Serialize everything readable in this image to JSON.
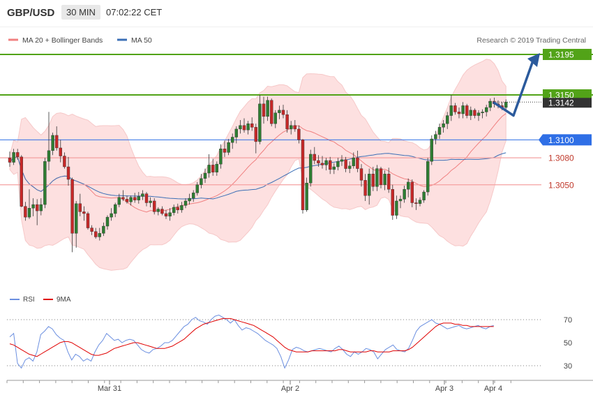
{
  "header": {
    "pair": "GBP/USD",
    "timeframe": "30 MIN",
    "time": "07:02:22 CET"
  },
  "legend": {
    "ma20": "MA 20 + Bollinger Bands",
    "ma50": "MA 50",
    "copyright": "Research © 2019 Trading Central"
  },
  "rsi_legend": {
    "rsi": "RSI",
    "ma": "9MA"
  },
  "colors": {
    "candle_up": "#2e7d32",
    "candle_down": "#c62828",
    "bollinger_fill": "#fde0e0",
    "ma20": "#f08080",
    "ma50": "#3b6fb6",
    "resistance": "#52a318",
    "support": "#f4a0a0",
    "pivot_line": "#2f6fe6",
    "forecast_arrow": "#2b5a9c",
    "rsi": "#6b8fe0",
    "rsi_ma": "#e00000",
    "price_tag": "#333333"
  },
  "chart_data": [
    {
      "type": "candlestick",
      "ylim": [
        3.01,
        3.325
      ],
      "x_ticks": [
        "Mar 31",
        "Apr 2",
        "Apr 3",
        "Apr 4"
      ],
      "price_levels": [
        {
          "label": "1.3195",
          "value": 1.3195,
          "kind": "resistance"
        },
        {
          "label": "1.3150",
          "value": 1.315,
          "kind": "resistance"
        },
        {
          "label": "1.3142",
          "value": 1.3142,
          "kind": "current"
        },
        {
          "label": "1.3100",
          "value": 1.31,
          "kind": "pivot"
        },
        {
          "label": "1.3080",
          "value": 1.308,
          "kind": "support"
        },
        {
          "label": "1.3050",
          "value": 1.305,
          "kind": "support"
        }
      ],
      "ohlc": [
        [
          1.308,
          1.3087,
          1.307,
          1.3075
        ],
        [
          1.3075,
          1.309,
          1.3072,
          1.3086
        ],
        [
          1.3086,
          1.309,
          1.3078,
          1.3081
        ],
        [
          1.3081,
          1.3083,
          1.3025,
          1.3026
        ],
        [
          1.3026,
          1.3031,
          1.301,
          1.3014
        ],
        [
          1.3014,
          1.3045,
          1.3012,
          1.3024
        ],
        [
          1.3024,
          1.3035,
          1.3015,
          1.3028
        ],
        [
          1.3028,
          1.3034,
          1.3005,
          1.3021
        ],
        [
          1.3021,
          1.3035,
          1.3016,
          1.3028
        ],
        [
          1.3028,
          1.308,
          1.3024,
          1.3076
        ],
        [
          1.3076,
          1.3131,
          1.3066,
          1.3088
        ],
        [
          1.3088,
          1.3108,
          1.3083,
          1.3105
        ],
        [
          1.3105,
          1.3115,
          1.3088,
          1.3091
        ],
        [
          1.3091,
          1.31,
          1.3075,
          1.3082
        ],
        [
          1.3082,
          1.3086,
          1.3068,
          1.307
        ],
        [
          1.307,
          1.3081,
          1.3049,
          1.3056
        ],
        [
          1.3056,
          1.3058,
          1.2975,
          1.2996
        ],
        [
          1.2996,
          1.3032,
          1.298,
          1.3029
        ],
        [
          1.3029,
          1.304,
          1.3015,
          1.302
        ],
        [
          1.302,
          1.3026,
          1.301,
          1.3018
        ],
        [
          1.3018,
          1.302,
          1.3,
          1.3002
        ],
        [
          1.3002,
          1.3005,
          1.2994,
          1.2998
        ],
        [
          1.2998,
          1.3002,
          1.299,
          1.2992
        ],
        [
          1.2992,
          1.3002,
          1.2988,
          1.2996
        ],
        [
          1.2996,
          1.3008,
          1.2993,
          1.3004
        ],
        [
          1.3004,
          1.3016,
          1.3,
          1.3014
        ],
        [
          1.3014,
          1.3024,
          1.301,
          1.3018
        ],
        [
          1.3018,
          1.303,
          1.3014,
          1.3028
        ],
        [
          1.3028,
          1.304,
          1.3025,
          1.3036
        ],
        [
          1.3036,
          1.3044,
          1.3032,
          1.3034
        ],
        [
          1.3034,
          1.3038,
          1.3029,
          1.3031
        ],
        [
          1.3031,
          1.3038,
          1.3027,
          1.3036
        ],
        [
          1.3036,
          1.3041,
          1.303,
          1.3033
        ],
        [
          1.3033,
          1.3042,
          1.3029,
          1.3037
        ],
        [
          1.3037,
          1.3044,
          1.3033,
          1.304
        ],
        [
          1.304,
          1.3042,
          1.3026,
          1.303
        ],
        [
          1.303,
          1.3036,
          1.3025,
          1.3032
        ],
        [
          1.3032,
          1.3035,
          1.3017,
          1.302
        ],
        [
          1.302,
          1.3025,
          1.3016,
          1.3023
        ],
        [
          1.3023,
          1.3026,
          1.3016,
          1.3018
        ],
        [
          1.3018,
          1.3022,
          1.3012,
          1.3015
        ],
        [
          1.3015,
          1.3024,
          1.301,
          1.3019
        ],
        [
          1.3019,
          1.3028,
          1.3016,
          1.3025
        ],
        [
          1.3025,
          1.3029,
          1.3018,
          1.3022
        ],
        [
          1.3022,
          1.3031,
          1.3019,
          1.3027
        ],
        [
          1.3027,
          1.3035,
          1.3024,
          1.3032
        ],
        [
          1.3032,
          1.304,
          1.3028,
          1.3035
        ],
        [
          1.3035,
          1.3044,
          1.3031,
          1.3041
        ],
        [
          1.3041,
          1.3053,
          1.3038,
          1.305
        ],
        [
          1.305,
          1.3062,
          1.3046,
          1.3057
        ],
        [
          1.3057,
          1.3068,
          1.3052,
          1.3063
        ],
        [
          1.3063,
          1.3084,
          1.3058,
          1.3072
        ],
        [
          1.3072,
          1.3079,
          1.306,
          1.3064
        ],
        [
          1.3064,
          1.3076,
          1.306,
          1.3073
        ],
        [
          1.3073,
          1.3095,
          1.3068,
          1.309
        ],
        [
          1.309,
          1.3099,
          1.3081,
          1.3086
        ],
        [
          1.3086,
          1.3101,
          1.3083,
          1.3097
        ],
        [
          1.3097,
          1.3107,
          1.309,
          1.3103
        ],
        [
          1.3103,
          1.3115,
          1.3096,
          1.3112
        ],
        [
          1.3112,
          1.3122,
          1.3107,
          1.3116
        ],
        [
          1.3116,
          1.3124,
          1.3108,
          1.3111
        ],
        [
          1.3111,
          1.3121,
          1.3106,
          1.3118
        ],
        [
          1.3118,
          1.3125,
          1.311,
          1.3114
        ],
        [
          1.3114,
          1.3118,
          1.3085,
          1.3098
        ],
        [
          1.3098,
          1.315,
          1.3095,
          1.314
        ],
        [
          1.314,
          1.3148,
          1.3118,
          1.3126
        ],
        [
          1.3126,
          1.3148,
          1.3121,
          1.3144
        ],
        [
          1.3144,
          1.3146,
          1.3115,
          1.3118
        ],
        [
          1.3118,
          1.3133,
          1.3113,
          1.313
        ],
        [
          1.313,
          1.3138,
          1.3123,
          1.3133
        ],
        [
          1.3133,
          1.3139,
          1.3124,
          1.3128
        ],
        [
          1.3128,
          1.3133,
          1.3108,
          1.3112
        ],
        [
          1.3112,
          1.3121,
          1.3106,
          1.3116
        ],
        [
          1.3116,
          1.3122,
          1.3109,
          1.3112
        ],
        [
          1.3112,
          1.3116,
          1.3096,
          1.31
        ],
        [
          1.31,
          1.3101,
          1.3018,
          1.3022
        ],
        [
          1.3022,
          1.3058,
          1.302,
          1.3052
        ],
        [
          1.3052,
          1.3089,
          1.3048,
          1.3084
        ],
        [
          1.3084,
          1.3092,
          1.3073,
          1.3077
        ],
        [
          1.3077,
          1.3083,
          1.307,
          1.3074
        ],
        [
          1.3074,
          1.3082,
          1.3068,
          1.3072
        ],
        [
          1.3072,
          1.308,
          1.3066,
          1.3077
        ],
        [
          1.3077,
          1.3081,
          1.3062,
          1.3067
        ],
        [
          1.3067,
          1.3074,
          1.3062,
          1.307
        ],
        [
          1.307,
          1.308,
          1.3066,
          1.3076
        ],
        [
          1.3076,
          1.3083,
          1.3071,
          1.3078
        ],
        [
          1.3078,
          1.3081,
          1.3064,
          1.3068
        ],
        [
          1.3068,
          1.3076,
          1.3063,
          1.3071
        ],
        [
          1.3071,
          1.3086,
          1.3068,
          1.308
        ],
        [
          1.308,
          1.3088,
          1.3064,
          1.3068
        ],
        [
          1.3068,
          1.3073,
          1.3048,
          1.3055
        ],
        [
          1.3055,
          1.3062,
          1.3032,
          1.3038
        ],
        [
          1.3038,
          1.3068,
          1.3028,
          1.3062
        ],
        [
          1.3062,
          1.307,
          1.3043,
          1.3048
        ],
        [
          1.3048,
          1.3072,
          1.3043,
          1.3068
        ],
        [
          1.3068,
          1.307,
          1.3046,
          1.305
        ],
        [
          1.305,
          1.3066,
          1.3044,
          1.3062
        ],
        [
          1.3062,
          1.3069,
          1.3041,
          1.3045
        ],
        [
          1.3045,
          1.305,
          1.3011,
          1.3016
        ],
        [
          1.3016,
          1.3038,
          1.3012,
          1.3032
        ],
        [
          1.3032,
          1.3038,
          1.3024,
          1.3034
        ],
        [
          1.3034,
          1.3049,
          1.303,
          1.3045
        ],
        [
          1.3045,
          1.3057,
          1.3036,
          1.3053
        ],
        [
          1.3053,
          1.3056,
          1.3025,
          1.303
        ],
        [
          1.303,
          1.3035,
          1.3022,
          1.3029
        ],
        [
          1.3029,
          1.3036,
          1.3026,
          1.3033
        ],
        [
          1.3033,
          1.3044,
          1.303,
          1.3042
        ],
        [
          1.3042,
          1.308,
          1.3038,
          1.3076
        ],
        [
          1.3076,
          1.3105,
          1.3072,
          1.3101
        ],
        [
          1.3101,
          1.311,
          1.3095,
          1.3106
        ],
        [
          1.3106,
          1.3118,
          1.3101,
          1.3114
        ],
        [
          1.3114,
          1.3122,
          1.3108,
          1.3118
        ],
        [
          1.3118,
          1.3131,
          1.3112,
          1.3127
        ],
        [
          1.3127,
          1.315,
          1.3121,
          1.3138
        ],
        [
          1.3138,
          1.3141,
          1.3128,
          1.3131
        ],
        [
          1.3131,
          1.3136,
          1.3124,
          1.3129
        ],
        [
          1.3129,
          1.3142,
          1.3124,
          1.3138
        ],
        [
          1.3138,
          1.314,
          1.3124,
          1.3127
        ],
        [
          1.3127,
          1.3137,
          1.3122,
          1.3133
        ],
        [
          1.3133,
          1.3135,
          1.3124,
          1.3127
        ],
        [
          1.3127,
          1.3133,
          1.3121,
          1.313
        ],
        [
          1.313,
          1.3134,
          1.3124,
          1.3131
        ],
        [
          1.3131,
          1.3139,
          1.3126,
          1.3136
        ],
        [
          1.3136,
          1.3146,
          1.3132,
          1.3143
        ],
        [
          1.3143,
          1.3147,
          1.3136,
          1.314
        ],
        [
          1.314,
          1.3144,
          1.3135,
          1.3138
        ],
        [
          1.3138,
          1.3142,
          1.3133,
          1.3136
        ],
        [
          1.3136,
          1.3145,
          1.3133,
          1.3142
        ]
      ],
      "forecast": [
        1.3142,
        1.3127,
        1.3195
      ]
    },
    {
      "type": "line",
      "ylim": [
        22,
        78
      ],
      "y_ticks": [
        70,
        50,
        30
      ],
      "series": [
        {
          "name": "RSI",
          "values": [
            55,
            58,
            32,
            28,
            35,
            37,
            34,
            42,
            57,
            60,
            64,
            62,
            57,
            54,
            52,
            42,
            35,
            40,
            38,
            34,
            36,
            34,
            42,
            48,
            52,
            58,
            55,
            52,
            53,
            50,
            52,
            53,
            52,
            48,
            44,
            42,
            41,
            44,
            45,
            47,
            50,
            50,
            52,
            56,
            60,
            64,
            66,
            70,
            72,
            69,
            68,
            66,
            70,
            73,
            74,
            72,
            70,
            67,
            70,
            65,
            61,
            63,
            62,
            60,
            58,
            55,
            52,
            50,
            48,
            45,
            38,
            28,
            35,
            44,
            46,
            45,
            43,
            42,
            43,
            44,
            45,
            44,
            43,
            42,
            45,
            47,
            44,
            40,
            38,
            42,
            40,
            42,
            45,
            44,
            42,
            36,
            40,
            44,
            46,
            48,
            44,
            43,
            42,
            45,
            52,
            60,
            64,
            66,
            68,
            70,
            67,
            66,
            64,
            62,
            63,
            64,
            65,
            63,
            62,
            63,
            64,
            65,
            63,
            62,
            64,
            65
          ]
        },
        {
          "name": "9MA",
          "values": [
            49,
            48,
            46,
            44,
            42,
            40,
            39,
            38,
            40,
            42,
            44,
            46,
            48,
            50,
            51,
            51,
            50,
            48,
            46,
            44,
            42,
            40,
            39,
            39,
            40,
            41,
            43,
            45,
            46,
            47,
            48,
            49,
            50,
            50,
            49,
            48,
            47,
            46,
            45,
            45,
            45,
            46,
            47,
            49,
            51,
            53,
            56,
            59,
            62,
            64,
            66,
            67,
            68,
            69,
            70,
            71,
            71,
            71,
            70,
            69,
            68,
            67,
            66,
            65,
            63,
            61,
            59,
            57,
            55,
            52,
            49,
            46,
            44,
            43,
            42,
            42,
            42,
            42,
            43,
            43,
            43,
            43,
            43,
            43,
            43,
            44,
            44,
            43,
            42,
            42,
            42,
            42,
            42,
            43,
            43,
            42,
            42,
            42,
            42,
            43,
            43,
            43,
            43,
            44,
            46,
            49,
            52,
            55,
            58,
            61,
            64,
            66,
            67,
            67,
            67,
            66,
            66,
            65,
            65,
            64,
            64,
            64,
            64,
            64,
            64,
            64
          ]
        }
      ]
    }
  ]
}
